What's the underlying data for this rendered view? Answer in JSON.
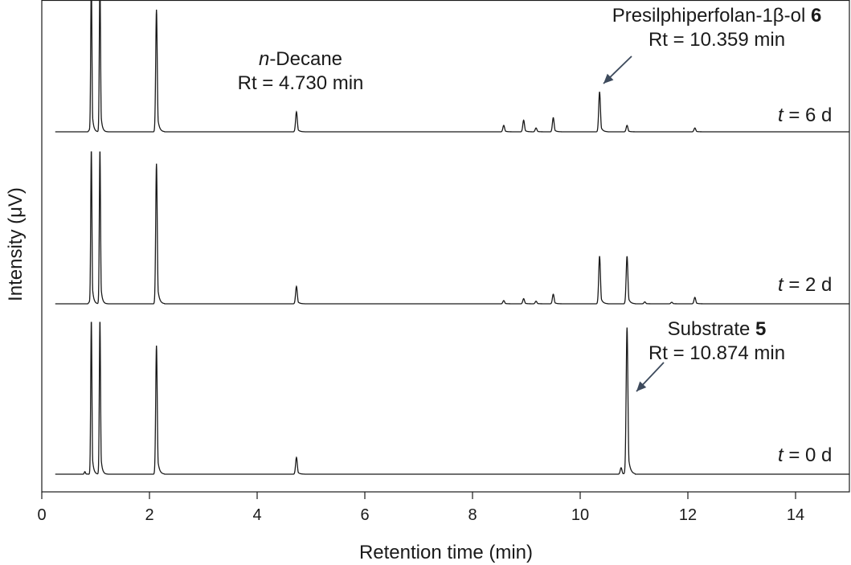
{
  "chart_data": {
    "type": "line",
    "title": "",
    "xlabel": "Retention time (min)",
    "ylabel": "Intensity (μV)",
    "xlim": [
      0,
      15
    ],
    "x_ticks": [
      0,
      2,
      4,
      6,
      8,
      10,
      12,
      14
    ],
    "y_ticks": [],
    "grid": false,
    "traces": [
      {
        "name_prefix": "t",
        "name_suffix": " = 6 d",
        "peaks": [
          {
            "rt": 0.88,
            "height": 0.012
          },
          {
            "rt": 0.92,
            "height": 1.2
          },
          {
            "rt": 1.08,
            "height": 1.2
          },
          {
            "rt": 2.13,
            "height": 0.95
          },
          {
            "rt": 4.73,
            "height": 0.155
          },
          {
            "rt": 8.58,
            "height": 0.05
          },
          {
            "rt": 8.95,
            "height": 0.09
          },
          {
            "rt": 9.18,
            "height": 0.03
          },
          {
            "rt": 9.5,
            "height": 0.11
          },
          {
            "rt": 10.36,
            "height": 0.31
          },
          {
            "rt": 10.87,
            "height": 0.05
          },
          {
            "rt": 12.13,
            "height": 0.03
          }
        ]
      },
      {
        "name_prefix": "t",
        "name_suffix": " = 2 d",
        "peaks": [
          {
            "rt": 0.88,
            "height": 0.012
          },
          {
            "rt": 0.92,
            "height": 1.2
          },
          {
            "rt": 1.08,
            "height": 1.2
          },
          {
            "rt": 2.13,
            "height": 1.09
          },
          {
            "rt": 4.73,
            "height": 0.135
          },
          {
            "rt": 8.58,
            "height": 0.025
          },
          {
            "rt": 8.95,
            "height": 0.04
          },
          {
            "rt": 9.18,
            "height": 0.02
          },
          {
            "rt": 9.5,
            "height": 0.075
          },
          {
            "rt": 10.36,
            "height": 0.37
          },
          {
            "rt": 10.87,
            "height": 0.37
          },
          {
            "rt": 11.2,
            "height": 0.015
          },
          {
            "rt": 11.7,
            "height": 0.012
          },
          {
            "rt": 12.13,
            "height": 0.05
          }
        ]
      },
      {
        "name_prefix": "t",
        "name_suffix": " = 0 d",
        "peaks": [
          {
            "rt": 0.8,
            "height": 0.02
          },
          {
            "rt": 0.92,
            "height": 1.2
          },
          {
            "rt": 1.08,
            "height": 1.2
          },
          {
            "rt": 2.13,
            "height": 1.0
          },
          {
            "rt": 4.73,
            "height": 0.13
          },
          {
            "rt": 10.76,
            "height": 0.05
          },
          {
            "rt": 10.87,
            "height": 1.14
          }
        ]
      }
    ],
    "annotations": [
      {
        "line1_prefix": "",
        "line1_italic": "n",
        "line1_rest": "-Decane",
        "line1_bold": "",
        "line2": "Rt = 4.730 min"
      },
      {
        "line1_prefix": "Presilphiperfolan-1β-ol ",
        "line1_italic": "",
        "line1_rest": "",
        "line1_bold": "6",
        "line2": "Rt = 10.359 min"
      },
      {
        "line1_prefix": "Substrate ",
        "line1_italic": "",
        "line1_rest": "",
        "line1_bold": "5",
        "line2": "Rt = 10.874 min"
      }
    ],
    "colors": {
      "trace": "#1a1a1a",
      "arrow": "#3d4a5c"
    }
  }
}
